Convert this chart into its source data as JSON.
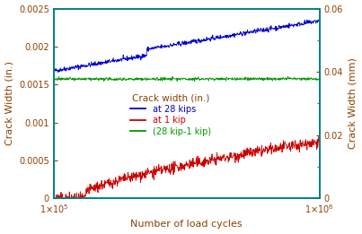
{
  "title": "",
  "xlabel": "Number of load cycles",
  "ylabel_left": "Crack Width (in.)",
  "ylabel_right": "Crack Width (mm)",
  "xlim_log": [
    100000.0,
    1000000.0
  ],
  "ylim_left": [
    0,
    0.0025
  ],
  "ylim_right": [
    0,
    0.06
  ],
  "legend_title": "Crack width (in.)",
  "legend_title_color": "#8B4000",
  "legend_labels": [
    "at 28 kips",
    "at 1 kip",
    "(28 kip-1 kip)"
  ],
  "line_colors": [
    "#0000CC",
    "#CC0000",
    "#009900"
  ],
  "axis_color": "#008080",
  "tick_label_color": "#8B4000",
  "label_color": "#8B4000",
  "legend_label_colors": [
    "#0000CC",
    "#CC0000",
    "#009900"
  ],
  "yticks_left": [
    0,
    0.0005,
    0.001,
    0.0015,
    0.002,
    0.0025
  ],
  "yticks_right": [
    0,
    0.02,
    0.04,
    0.06
  ],
  "seed": 42,
  "n_points": 800
}
